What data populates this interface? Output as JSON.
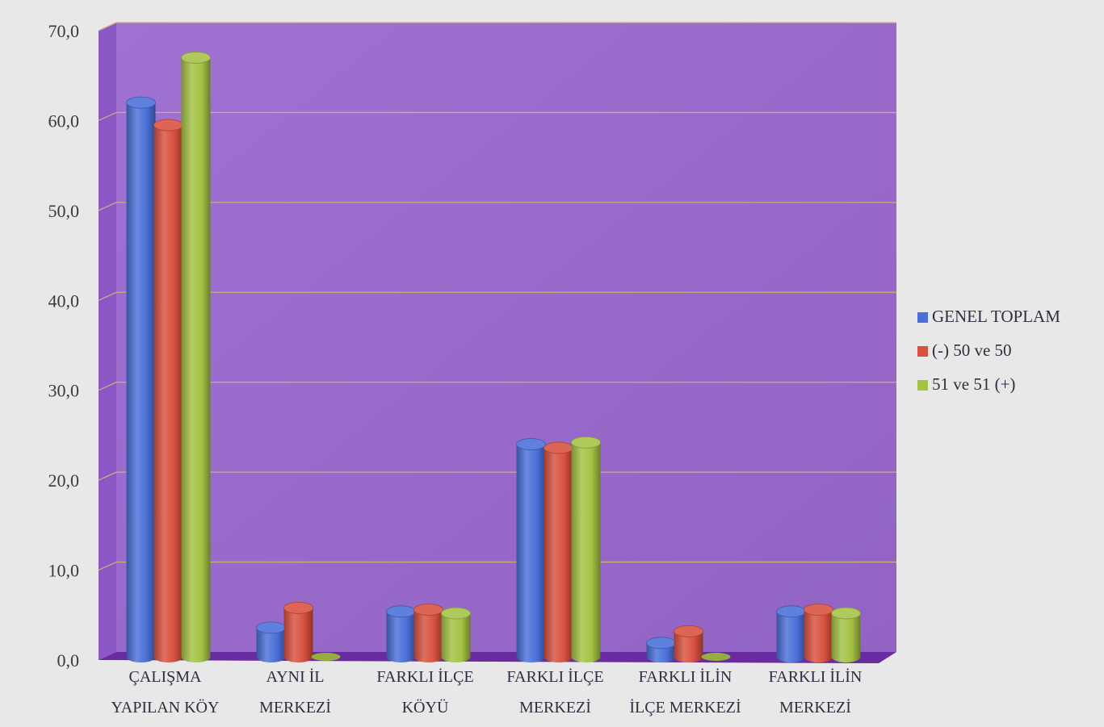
{
  "chart_data": {
    "type": "bar",
    "title": "",
    "xlabel": "",
    "ylabel": "",
    "categories": [
      [
        "ÇALIŞMA",
        "YAPILAN KÖY"
      ],
      [
        "AYNI İL",
        "MERKEZİ"
      ],
      [
        "FARKLI İLÇE",
        "KÖYÜ"
      ],
      [
        "FARKLI İLÇE",
        "MERKEZİ"
      ],
      [
        "FARKLI İLİN",
        "İLÇE MERKEZİ"
      ],
      [
        "FARKLI İLİN",
        "MERKEZİ"
      ]
    ],
    "series": [
      {
        "name": "GENEL TOPLAM",
        "color": "#4a6fd8",
        "values": [
          62.0,
          3.6,
          5.4,
          24.0,
          1.9,
          5.4
        ]
      },
      {
        "name": "(-) 50 ve 50",
        "color": "#d8503e",
        "values": [
          59.5,
          5.8,
          5.6,
          23.6,
          3.2,
          5.6
        ]
      },
      {
        "name": "51 ve 51 (+)",
        "color": "#a4c244",
        "values": [
          67.0,
          0.0,
          5.2,
          24.2,
          0.0,
          5.2
        ]
      }
    ],
    "ylim": [
      0,
      70
    ],
    "yticks": [
      "0,0",
      "10,0",
      "20,0",
      "30,0",
      "40,0",
      "50,0",
      "60,0",
      "70,0"
    ],
    "grid": true,
    "legend": "right",
    "style": "3d-cylinder",
    "colors": {
      "wall": "#9a6ad0",
      "side_wall": "#8a58c4",
      "floor": "#6a2aa0",
      "gridline": "#c8b07a",
      "page": "#e8e8e8"
    }
  }
}
